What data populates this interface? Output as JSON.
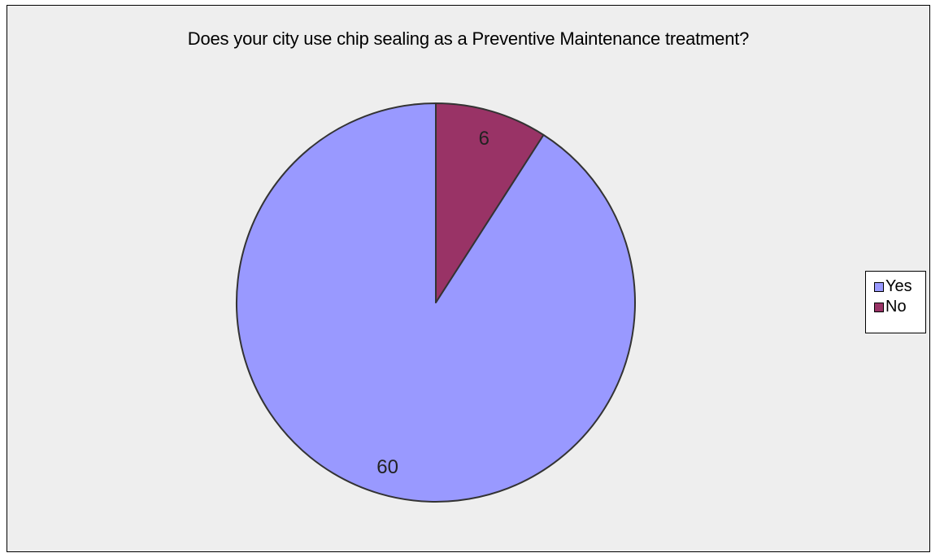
{
  "chart_data": {
    "type": "pie",
    "title": "Does your city use chip sealing as a Preventive Maintenance treatment?",
    "slices": [
      {
        "label": "Yes",
        "value": 60,
        "color": "#9999ff"
      },
      {
        "label": "No",
        "value": 6,
        "color": "#993366"
      }
    ],
    "data_labels": [
      "60",
      "6"
    ],
    "legend_position": "right",
    "start_angle_deg": 0,
    "direction": "counter-clockwise",
    "background_color": "#eeeeee",
    "outline_color": "#333333"
  }
}
